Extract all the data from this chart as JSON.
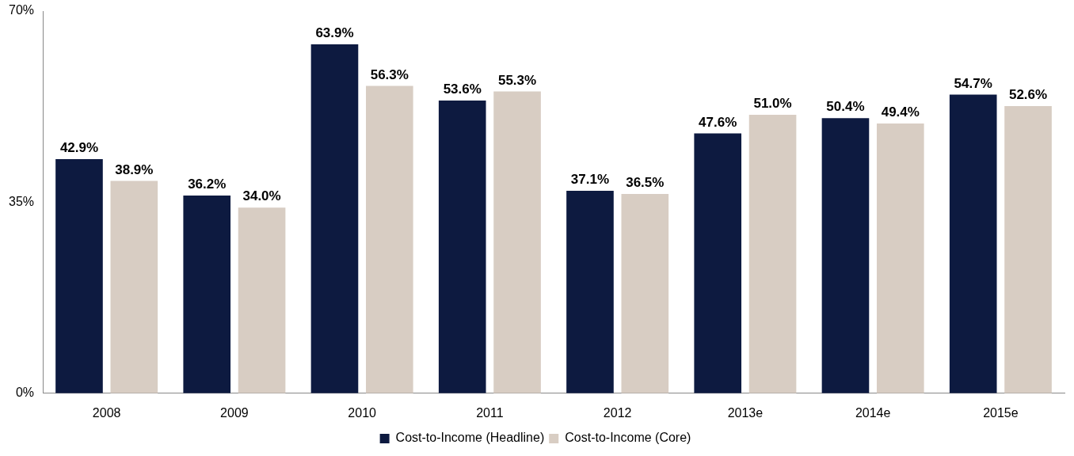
{
  "chart_data": {
    "type": "bar",
    "categories": [
      "2008",
      "2009",
      "2010",
      "2011",
      "2012",
      "2013e",
      "2014e",
      "2015e"
    ],
    "series": [
      {
        "name": "Cost-to-Income (Headline)",
        "color": "#0d1a40",
        "values": [
          42.9,
          36.2,
          63.9,
          53.6,
          37.1,
          47.6,
          50.4,
          54.7
        ],
        "value_labels": [
          "42.9%",
          "36.2%",
          "63.9%",
          "53.6%",
          "37.1%",
          "47.6%",
          "50.4%",
          "54.7%"
        ]
      },
      {
        "name": "Cost-to-Income (Core)",
        "color": "#d8cdc3",
        "values": [
          38.9,
          34.0,
          56.3,
          55.3,
          36.5,
          51.0,
          49.4,
          52.6
        ],
        "value_labels": [
          "38.9%",
          "34.0%",
          "56.3%",
          "55.3%",
          "36.5%",
          "51.0%",
          "49.4%",
          "52.6%"
        ]
      }
    ],
    "ylim": [
      0,
      70
    ],
    "yticks": [
      {
        "value": 0,
        "label": "0%"
      },
      {
        "value": 35,
        "label": "35%"
      },
      {
        "value": 70,
        "label": "70%"
      }
    ],
    "grid": false,
    "legend": "bottom"
  }
}
